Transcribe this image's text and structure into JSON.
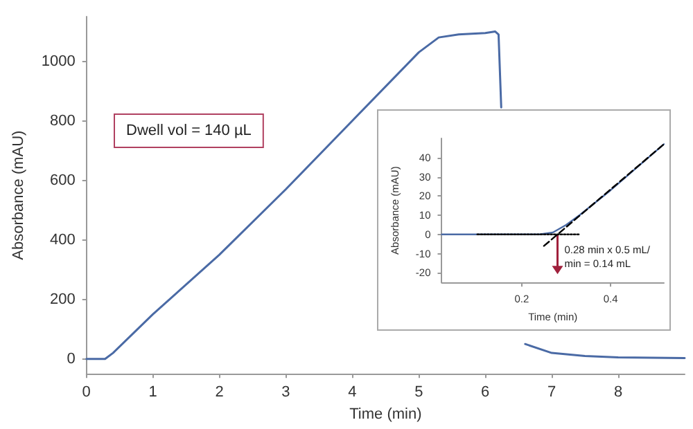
{
  "chart_data": [
    {
      "type": "line",
      "xlabel": "Time (min)",
      "ylabel": "Absorbance (mAU)",
      "x": [
        0,
        0.28,
        0.4,
        1,
        2,
        3,
        4,
        5,
        5.3,
        5.6,
        6,
        6.15,
        6.2,
        6.24,
        6.3,
        6.4,
        6.6,
        7,
        7.5,
        8,
        9
      ],
      "series": [
        {
          "color": "#4a6aa5",
          "values": [
            0,
            0,
            20,
            150,
            350,
            570,
            800,
            1030,
            1080,
            1090,
            1095,
            1100,
            1090,
            845,
            null,
            null,
            50,
            20,
            10,
            5,
            3
          ]
        }
      ],
      "xlim": [
        0,
        9
      ],
      "ylim": [
        -50,
        1150
      ],
      "xticks": [
        0,
        1,
        2,
        3,
        4,
        5,
        6,
        7,
        8
      ],
      "yticks": [
        0,
        200,
        400,
        600,
        800,
        1000
      ],
      "grid": false,
      "marker": "none",
      "line_style": "solid",
      "annotations": [
        "Dwell vol = 140 µL"
      ]
    },
    {
      "type": "line",
      "xlabel": "Time (min)",
      "ylabel": "Absorbance (mAU)",
      "series": [
        {
          "color": "#4a6aa5",
          "x": [
            0.02,
            0.24,
            0.27,
            0.3,
            0.33,
            0.4,
            0.45,
            0.52
          ],
          "values": [
            0,
            0,
            1,
            5,
            10,
            23,
            33,
            47
          ]
        },
        {
          "color": "#000000",
          "x": [
            0.25,
            0.52
          ],
          "values": [
            -6,
            47
          ],
          "line_style": "dashed"
        },
        {
          "color": "#000000",
          "x": [
            0.1,
            0.33
          ],
          "values": [
            0,
            0
          ],
          "line_style": "dotted"
        }
      ],
      "xlim": [
        0.02,
        0.52
      ],
      "ylim": [
        -25,
        50
      ],
      "xticks": [
        0.2,
        0.4
      ],
      "yticks": [
        -20,
        -10,
        0,
        10,
        20,
        30,
        40
      ],
      "grid": false,
      "marker": "none",
      "line_style": "solid",
      "annotations": [
        "0.28 min x 0.5 mL/min = 0.14 mL"
      ]
    }
  ]
}
